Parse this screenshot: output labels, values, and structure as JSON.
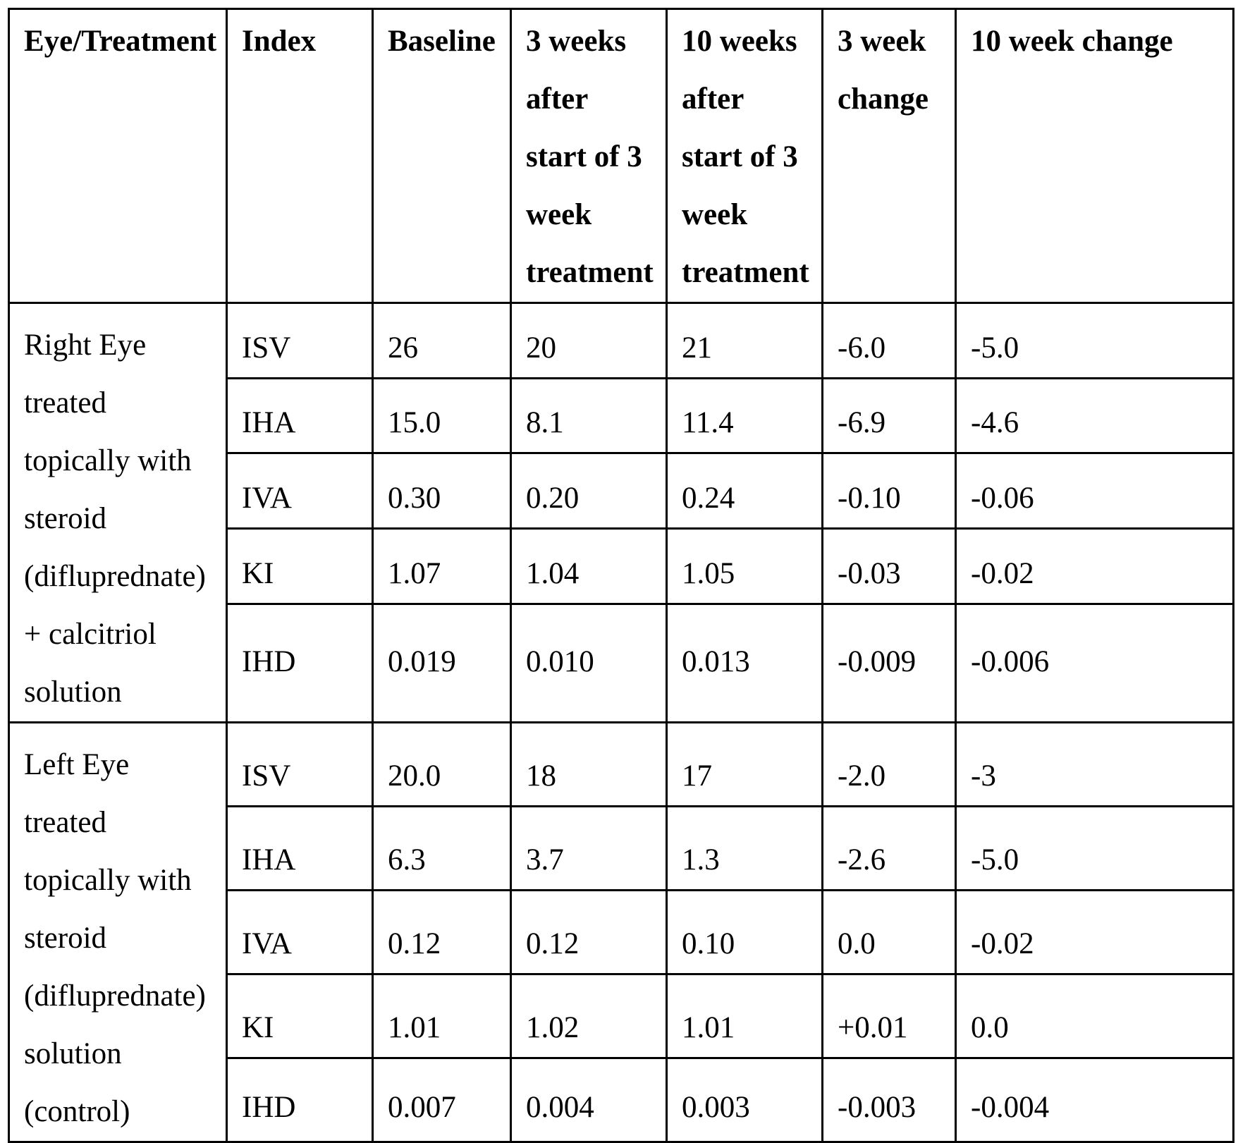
{
  "headers": [
    "Eye/Treatment",
    "Index",
    "Baseline",
    "3 weeks after start of 3 week treatment",
    "10 weeks after start of 3 week treatment",
    "3 week change",
    "10 week change"
  ],
  "groups": [
    {
      "treatment": "Right Eye treated topically with steroid (difluprednate) + calcitriol solution",
      "rows": [
        [
          "ISV",
          "26",
          "20",
          "21",
          "-6.0",
          "-5.0"
        ],
        [
          "IHA",
          "15.0",
          "8.1",
          "11.4",
          "-6.9",
          "-4.6"
        ],
        [
          "IVA",
          "0.30",
          "0.20",
          "0.24",
          "-0.10",
          "-0.06"
        ],
        [
          "KI",
          "1.07",
          "1.04",
          "1.05",
          "-0.03",
          "-0.02"
        ],
        [
          "IHD",
          "0.019",
          "0.010",
          "0.013",
          "-0.009",
          "-0.006"
        ]
      ]
    },
    {
      "treatment": "Left Eye treated topically with steroid (difluprednate) solution (control)",
      "rows": [
        [
          "ISV",
          "20.0",
          "18",
          "17",
          "-2.0",
          "-3"
        ],
        [
          "IHA",
          "6.3",
          "3.7",
          "1.3",
          "-2.6",
          "-5.0"
        ],
        [
          "IVA",
          "0.12",
          "0.12",
          "0.10",
          "0.0",
          "-0.02"
        ],
        [
          "KI",
          "1.01",
          "1.02",
          "1.01",
          "+0.01",
          "0.0"
        ],
        [
          "IHD",
          "0.007",
          "0.004",
          "0.003",
          "-0.003",
          "-0.004"
        ]
      ]
    }
  ]
}
